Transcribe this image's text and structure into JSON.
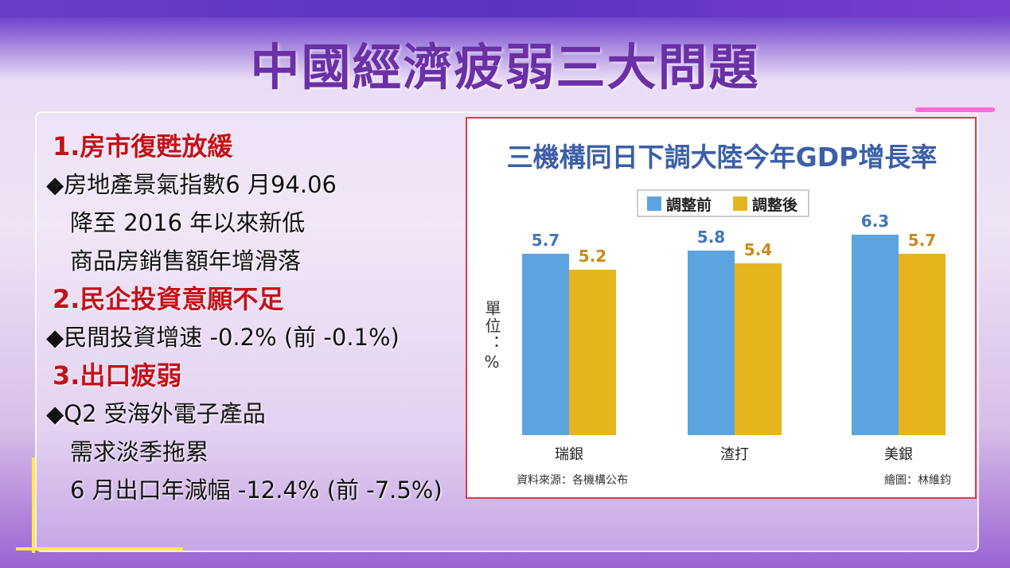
{
  "slide_title": "中國經濟疲弱三大問題",
  "sections": [
    {
      "heading": "1.房市復甦放緩",
      "lines": [
        "◆房地產景氣指數6 月94.06",
        "降至 2016 年以來新低",
        "商品房銷售額年增滑落"
      ]
    },
    {
      "heading": "2.民企投資意願不足",
      "lines": [
        "◆民間投資增速 -0.2% (前 -0.1%)"
      ]
    },
    {
      "heading": "3.出口疲弱",
      "lines": [
        "◆Q2 受海外電子產品",
        "需求淡季拖累",
        "6 月出口年減幅 -12.4% (前 -7.5%)"
      ]
    }
  ],
  "chart_data": {
    "type": "bar",
    "title": "三機構同日下調大陸今年GDP增長率",
    "ylabel": "單位：%",
    "categories": [
      "瑞銀",
      "渣打",
      "美銀"
    ],
    "series": [
      {
        "name": "調整前",
        "color": "#5ba4e0",
        "label_color": "#3f78b8",
        "values": [
          5.7,
          5.8,
          6.3
        ]
      },
      {
        "name": "調整後",
        "color": "#e6b51e",
        "label_color": "#c98a1a",
        "values": [
          5.2,
          5.4,
          5.7
        ]
      }
    ],
    "ylim": [
      0,
      10
    ],
    "source": "資料來源：各機構公布",
    "credit": "繪圖：林維鈞"
  }
}
